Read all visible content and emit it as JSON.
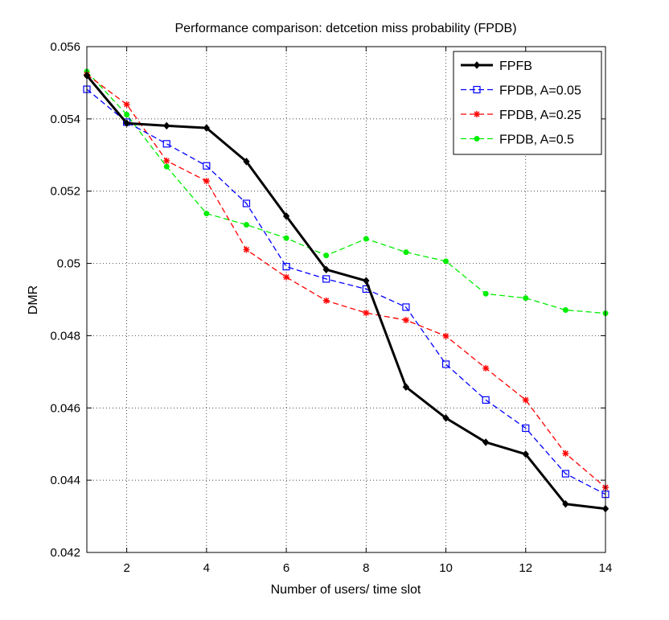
{
  "chart_data": {
    "type": "line",
    "title": "Performance comparison: detcetion miss probability (FPDB)",
    "xlabel": "Number of users/ time slot",
    "ylabel": "DMR",
    "xlim": [
      1,
      14
    ],
    "ylim": [
      0.042,
      0.056
    ],
    "xticks": [
      2,
      4,
      6,
      8,
      10,
      12,
      14
    ],
    "xtick_labels": [
      "2",
      "4",
      "6",
      "8",
      "10",
      "12",
      "14"
    ],
    "yticks": [
      0.042,
      0.044,
      0.046,
      0.048,
      0.05,
      0.052,
      0.054,
      0.056
    ],
    "ytick_labels": [
      "0.042",
      "0.044",
      "0.046",
      "0.048",
      "0.05",
      "0.052",
      "0.054",
      "0.056"
    ],
    "grid": true,
    "legend_position": "top-right",
    "x": [
      1,
      2,
      3,
      4,
      5,
      6,
      7,
      8,
      9,
      10,
      11,
      12,
      13,
      14
    ],
    "series": [
      {
        "name": "FPFB",
        "color": "#000000",
        "line_style": "solid",
        "marker": "diamond",
        "values": [
          0.0552,
          0.05388,
          0.05381,
          0.05375,
          0.05282,
          0.05131,
          0.04983,
          0.04952,
          0.04658,
          0.04572,
          0.04505,
          0.04472,
          0.04334,
          0.04321
        ]
      },
      {
        "name": "FPDB, A=0.05",
        "color": "#0000ff",
        "line_style": "dashed",
        "marker": "square",
        "values": [
          0.05482,
          0.05391,
          0.05331,
          0.0527,
          0.05166,
          0.04991,
          0.04957,
          0.04929,
          0.04879,
          0.04721,
          0.04622,
          0.04544,
          0.04418,
          0.04361
        ]
      },
      {
        "name": "FPDB, A=0.25",
        "color": "#ff0000",
        "line_style": "dashed",
        "marker": "asterisk",
        "values": [
          0.05523,
          0.0544,
          0.05284,
          0.05228,
          0.05038,
          0.04962,
          0.04897,
          0.04863,
          0.04843,
          0.04799,
          0.0471,
          0.04622,
          0.04474,
          0.0438
        ]
      },
      {
        "name": "FPDB, A=0.5",
        "color": "#00ee00",
        "line_style": "dashed",
        "marker": "circle",
        "values": [
          0.05531,
          0.05412,
          0.05268,
          0.05138,
          0.05107,
          0.0507,
          0.05022,
          0.05068,
          0.05031,
          0.05006,
          0.04916,
          0.04904,
          0.04871,
          0.04862
        ]
      }
    ]
  }
}
